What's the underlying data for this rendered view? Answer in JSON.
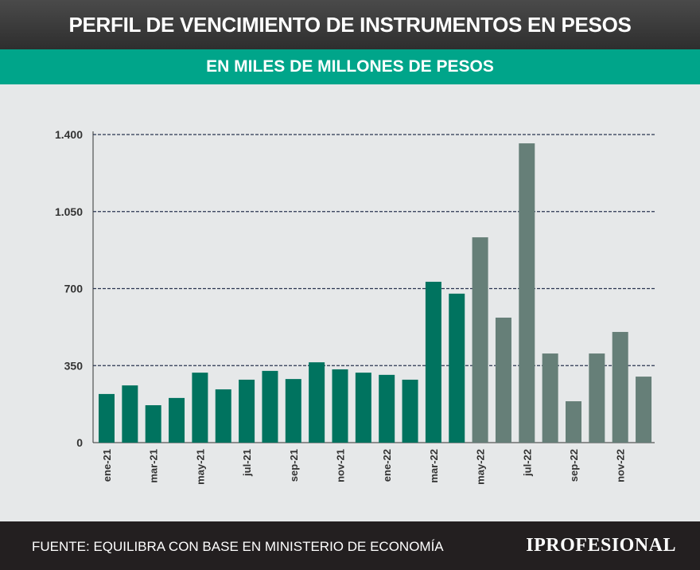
{
  "header": {
    "title": "PERFIL DE VENCIMIENTO DE INSTRUMENTOS EN PESOS",
    "subtitle": "EN MILES DE MILLONES DE PESOS"
  },
  "footer": {
    "source": "FUENTE: EQUILIBRA CON BASE EN MINISTERIO DE ECONOMÍA",
    "logo": "IPROFESIONAL"
  },
  "chart_data": {
    "type": "bar",
    "categories": [
      "ene-21",
      "feb-21",
      "mar-21",
      "abr-21",
      "may-21",
      "jun-21",
      "jul-21",
      "ago-21",
      "sep-21",
      "oct-21",
      "nov-21",
      "dic-21",
      "ene-22",
      "feb-22",
      "mar-22",
      "abr-22",
      "may-22",
      "jun-22",
      "jul-22",
      "ago-22",
      "sep-22",
      "oct-22",
      "nov-22",
      "dic-22"
    ],
    "tick_labels": [
      "ene-21",
      "mar-21",
      "may-21",
      "jul-21",
      "sep-21",
      "nov-21",
      "ene-22",
      "mar-22",
      "may-22",
      "jul-22",
      "sep-22",
      "nov-22"
    ],
    "values": [
      221,
      260,
      170,
      203,
      318,
      242,
      286,
      326,
      289,
      365,
      333,
      318,
      308,
      286,
      731,
      677,
      933,
      568,
      1360,
      405,
      188,
      405,
      503,
      300
    ],
    "ylim": [
      0,
      1400
    ],
    "yticks": [
      0,
      350,
      700,
      1050,
      1400
    ],
    "ytick_labels": [
      "0",
      "350",
      "700",
      "1.050",
      "1.400"
    ],
    "grid": true,
    "colors": {
      "past": "#00735f",
      "future": "#667f78",
      "grid": "#2a3550"
    },
    "future_from": "may-22"
  }
}
